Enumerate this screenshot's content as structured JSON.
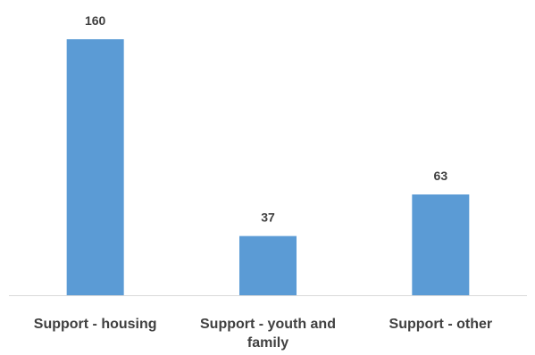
{
  "chart_data": {
    "type": "bar",
    "categories": [
      [
        "Support - housing"
      ],
      [
        "Support - youth and",
        "family"
      ],
      [
        "Support - other"
      ]
    ],
    "values": [
      160,
      37,
      63
    ],
    "data_labels": [
      "160",
      "37",
      "63"
    ],
    "ylim": [
      0,
      160
    ],
    "grid": false,
    "legend": "none",
    "bar_color": "#5b9bd5",
    "axis_color": "#d9d9d9",
    "text_color": "#404040"
  }
}
